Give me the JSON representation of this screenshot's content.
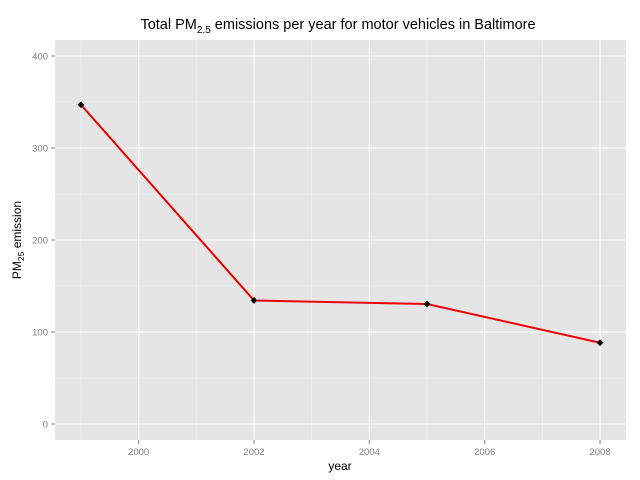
{
  "chart_data": {
    "type": "line",
    "title": {
      "prefix": "Total PM",
      "subscript": "2.5",
      "suffix": " emissions per year for motor vehicles in Baltimore"
    },
    "xlabel": "year",
    "ylabel": {
      "prefix": "PM",
      "subscript": "25",
      "suffix": " emission"
    },
    "x": [
      1999,
      2002,
      2005,
      2008
    ],
    "series": [
      {
        "values": [
          347,
          134.3,
          130.4,
          88.3
        ],
        "color": "#ee0000",
        "marker_color": "#000000"
      }
    ],
    "xlim": [
      1998.55,
      2008.45
    ],
    "ylim": [
      -17.4,
      417.4
    ],
    "x_ticks": [
      2000,
      2002,
      2004,
      2006,
      2008
    ],
    "x_tick_labels": [
      "2000",
      "2002",
      "2004",
      "2006",
      "2008"
    ],
    "y_ticks": [
      0,
      100,
      200,
      300,
      400
    ],
    "y_tick_labels": [
      "0",
      "100",
      "200",
      "300",
      "400"
    ],
    "x_minor_ticks": [
      1999,
      2001,
      2003,
      2005,
      2007
    ],
    "y_minor_ticks": [
      50,
      150,
      250,
      350
    ],
    "grid": true,
    "panel_background": "#e5e5e5",
    "legend": "none"
  }
}
